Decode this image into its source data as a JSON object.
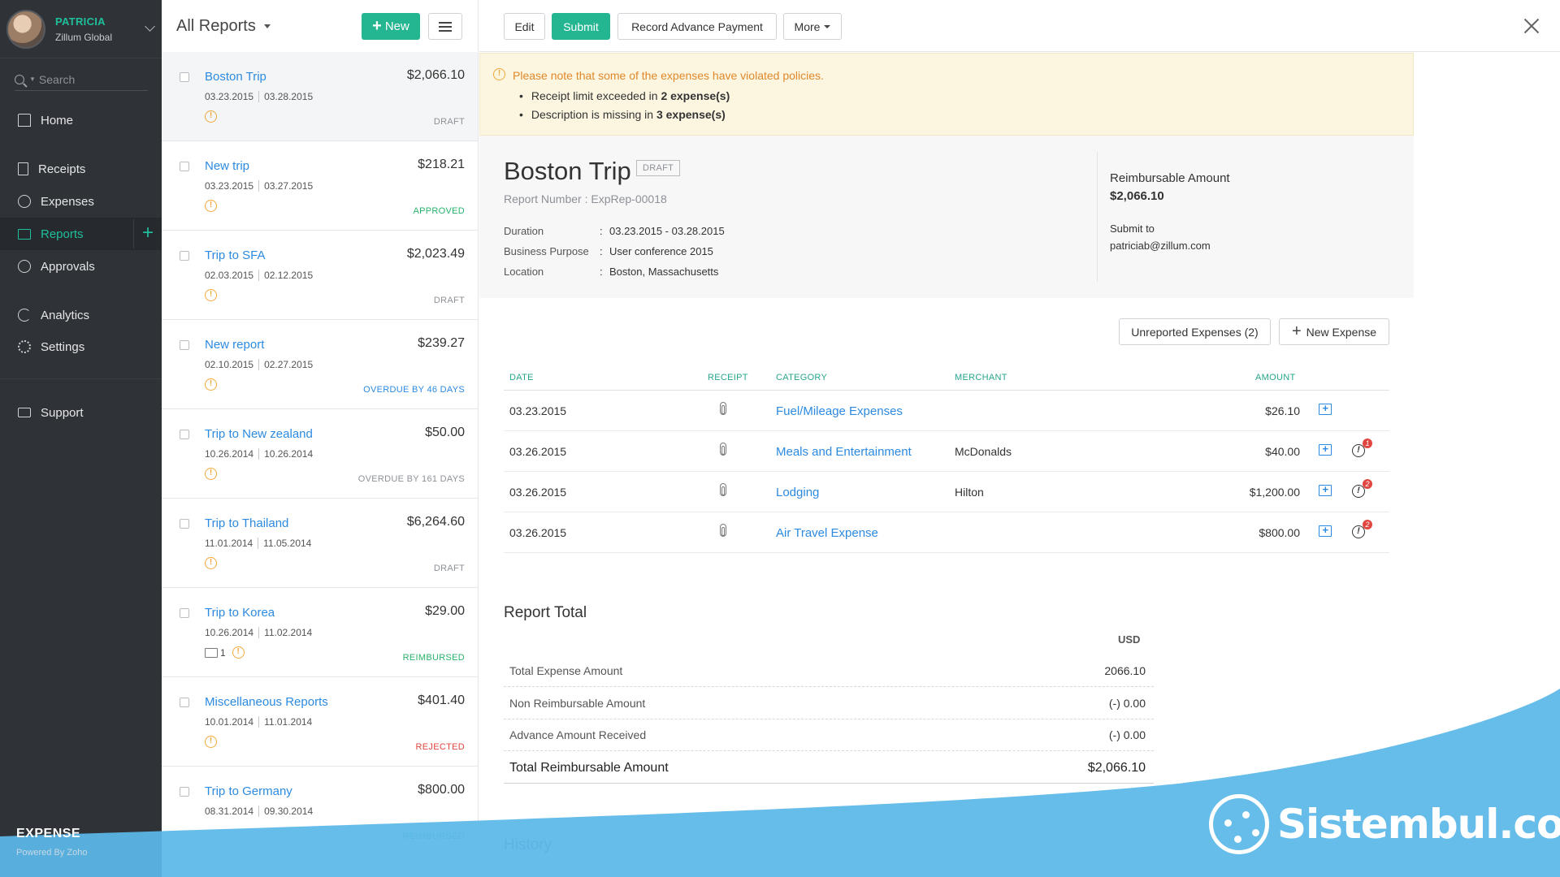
{
  "sidebar": {
    "user_name": "PATRICIA",
    "org": "Zillum Global",
    "search_placeholder": "Search",
    "nav": [
      {
        "label": "Home",
        "icon": "home-icon"
      },
      {
        "label": "Receipts",
        "icon": "receipt-icon"
      },
      {
        "label": "Expenses",
        "icon": "dollar-icon"
      },
      {
        "label": "Reports",
        "icon": "folder-icon"
      },
      {
        "label": "Approvals",
        "icon": "check-circle-icon"
      },
      {
        "label": "Analytics",
        "icon": "pie-chart-icon"
      },
      {
        "label": "Settings",
        "icon": "gear-icon"
      },
      {
        "label": "Support",
        "icon": "support-icon"
      }
    ],
    "brand": "EXPENSE",
    "powered": "Powered By Zoho"
  },
  "list": {
    "title": "All Reports",
    "new_label": "New",
    "reports": [
      {
        "name": "Boston Trip",
        "amount": "$2,066.10",
        "from": "03.23.2015",
        "to": "03.28.2015",
        "status": "DRAFT",
        "status_class": "s-draft"
      },
      {
        "name": "New trip",
        "amount": "$218.21",
        "from": "03.23.2015",
        "to": "03.27.2015",
        "status": "APPROVED",
        "status_class": "s-approved"
      },
      {
        "name": "Trip to SFA",
        "amount": "$2,023.49",
        "from": "02.03.2015",
        "to": "02.12.2015",
        "status": "DRAFT",
        "status_class": "s-draft"
      },
      {
        "name": "New report",
        "amount": "$239.27",
        "from": "02.10.2015",
        "to": "02.27.2015",
        "status": "OVERDUE BY 46 DAYS",
        "status_class": "s-overdue"
      },
      {
        "name": "Trip to New zealand",
        "amount": "$50.00",
        "from": "10.26.2014",
        "to": "10.26.2014",
        "status": "OVERDUE BY 161 DAYS",
        "status_class": "s-draft"
      },
      {
        "name": "Trip to Thailand",
        "amount": "$6,264.60",
        "from": "11.01.2014",
        "to": "11.05.2014",
        "status": "DRAFT",
        "status_class": "s-draft"
      },
      {
        "name": "Trip to Korea",
        "amount": "$29.00",
        "from": "10.26.2014",
        "to": "11.02.2014",
        "status": "REIMBURSED",
        "status_class": "s-reimbursed",
        "comments": "1"
      },
      {
        "name": "Miscellaneous Reports",
        "amount": "$401.40",
        "from": "10.01.2014",
        "to": "11.01.2014",
        "status": "REJECTED",
        "status_class": "s-rejected"
      },
      {
        "name": "Trip to Germany",
        "amount": "$800.00",
        "from": "08.31.2014",
        "to": "09.30.2014",
        "status": "REIMBURSED",
        "status_class": "s-reimbursed"
      }
    ]
  },
  "toolbar": {
    "edit": "Edit",
    "submit": "Submit",
    "record_advance": "Record Advance Payment",
    "more": "More"
  },
  "banner": {
    "title": "Please note that some of the expenses have violated policies.",
    "line1_pre": "Receipt limit exceeded in ",
    "line1_bold": "2 expense(s)",
    "line2_pre": "Description is missing in ",
    "line2_bold": "3 expense(s)"
  },
  "report": {
    "title": "Boston Trip",
    "badge": "DRAFT",
    "number": "Report Number : ExpRep-00018",
    "duration_label": "Duration",
    "duration": "03.23.2015 - 03.28.2015",
    "purpose_label": "Business Purpose",
    "purpose": "User conference 2015",
    "location_label": "Location",
    "location": "Boston, Massachusetts",
    "reimb_label": "Reimbursable Amount",
    "reimb_value": "$2,066.10",
    "submit_to_label": "Submit to",
    "submit_to": "patriciab@zillum.com"
  },
  "expenses": {
    "unreported_label": "Unreported Expenses (2)",
    "new_expense_label": "New Expense",
    "headers": {
      "date": "DATE",
      "receipt": "RECEIPT",
      "category": "CATEGORY",
      "merchant": "MERCHANT",
      "amount": "AMOUNT"
    },
    "rows": [
      {
        "date": "03.23.2015",
        "category": "Fuel/Mileage Expenses",
        "merchant": "",
        "amount": "$26.10",
        "violations": ""
      },
      {
        "date": "03.26.2015",
        "category": "Meals and Entertainment",
        "merchant": "McDonalds",
        "amount": "$40.00",
        "violations": "1"
      },
      {
        "date": "03.26.2015",
        "category": "Lodging",
        "merchant": "Hilton",
        "amount": "$1,200.00",
        "violations": "2"
      },
      {
        "date": "03.26.2015",
        "category": "Air Travel Expense",
        "merchant": "",
        "amount": "$800.00",
        "violations": "2"
      }
    ]
  },
  "totals": {
    "title": "Report Total",
    "currency": "USD",
    "rows": [
      {
        "label": "Total Expense Amount",
        "value": "2066.10"
      },
      {
        "label": "Non Reimbursable Amount",
        "value": "(-) 0.00"
      },
      {
        "label": "Advance Amount Received",
        "value": "(-) 0.00"
      },
      {
        "label": "Total Reimbursable Amount",
        "value": "$2,066.10"
      }
    ]
  },
  "history_label": "History",
  "watermark": "Sistembul.com",
  "colors": {
    "accent": "#24b591",
    "link": "#2c8ae0",
    "wave": "#5bb8e8"
  }
}
